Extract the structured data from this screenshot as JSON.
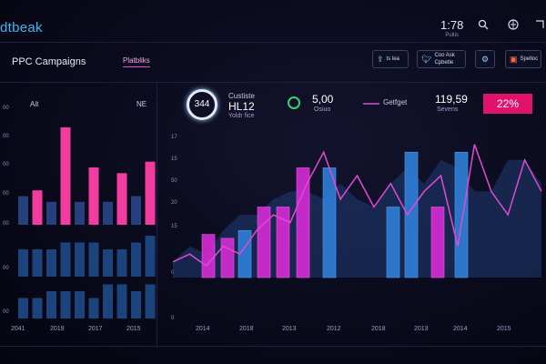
{
  "header": {
    "brand": "dtbeak",
    "stat_value": "1:78",
    "stat_label": "Pultis",
    "search_icon": "search-icon",
    "bell_icon": "bell-icon",
    "globe_icon": "globe-icon",
    "expand_icon": "expand-icon"
  },
  "subheader": {
    "title": "PPC Campaigns",
    "link": "Platbliks",
    "buttons": [
      {
        "icon": "share-icon",
        "label": "ts lea"
      },
      {
        "icon": "twitter-icon",
        "label": "Coo Ask Cpbetle"
      },
      {
        "icon": "gear-icon",
        "label": ""
      },
      {
        "icon": "store-icon",
        "label": "Spelloc"
      }
    ]
  },
  "left_panel": {
    "label_left": "Ait",
    "label_right": "NE",
    "x_labels": [
      "2041",
      "2019",
      "2017",
      "2015"
    ],
    "y_labels": [
      "00",
      "00",
      "00",
      "00",
      "00",
      "00",
      "00"
    ]
  },
  "kpis": {
    "ring_value": "344",
    "k1_title": "Custiste",
    "k1_value": "HL12",
    "k1_sub": "Yoldr fice",
    "k2_value": "5,00",
    "k2_sub": "Osiuo",
    "legend_label": "Getfget",
    "k3_value": "119,59",
    "k3_sub": "Sevens",
    "badge": "22%"
  },
  "main_chart": {
    "y_labels": [
      "17",
      "15",
      "50",
      "20",
      "15",
      "0",
      "0"
    ],
    "x_labels": [
      "2014",
      "2018",
      "2013",
      "2012",
      "2018",
      "2013",
      "2014",
      "2015"
    ]
  },
  "chart_data": [
    {
      "type": "bar",
      "series": [
        {
          "name": "top",
          "values": [
            5,
            6,
            4,
            17,
            4,
            10,
            4,
            9,
            5,
            11
          ],
          "colors": [
            "#2a4a8e",
            "#ff3fa8",
            "#2a4a8e",
            "#ff3fa8",
            "#2a4a8e",
            "#ff3fa8",
            "#2a4a8e",
            "#ff3fa8",
            "#2a4a8e",
            "#ff3fa8"
          ]
        },
        {
          "name": "middle",
          "values": [
            4,
            4,
            4,
            5,
            5,
            5,
            4,
            4,
            5,
            6
          ],
          "colors": [
            "#1f4f8f"
          ]
        },
        {
          "name": "bottom",
          "values": [
            3,
            3,
            4,
            4,
            4,
            3,
            5,
            5,
            4,
            5
          ],
          "colors": [
            "#1f4f8f"
          ]
        }
      ],
      "xlabels": [
        "2041",
        "2019",
        "2017",
        "2015"
      ]
    },
    {
      "type": "bar",
      "categories": [
        "2014",
        "2018",
        "2013",
        "2012",
        "2018",
        "2013",
        "2014",
        "2015"
      ],
      "series": [
        {
          "name": "magenta",
          "values": [
            5.5,
            5,
            7,
            9,
            9,
            14,
            0,
            0
          ],
          "color": "#d62bd6"
        },
        {
          "name": "blue",
          "values": [
            0,
            0,
            6,
            0,
            0,
            0,
            14,
            0
          ],
          "color": "#2e7ed8"
        }
      ],
      "bars": [
        {
          "v": 5.5,
          "c": "magenta"
        },
        {
          "v": 5,
          "c": "magenta"
        },
        {
          "v": 6,
          "c": "blue"
        },
        {
          "v": 9,
          "c": "magenta"
        },
        {
          "v": 9,
          "c": "magenta"
        },
        {
          "v": 14,
          "c": "magenta"
        },
        {
          "v": 14,
          "c": "blue"
        },
        {
          "v": 9,
          "c": "blue"
        },
        {
          "v": 16,
          "c": "blue"
        },
        {
          "v": 9,
          "c": "magenta"
        },
        {
          "v": 16,
          "c": "blue"
        }
      ],
      "line": [
        2,
        3,
        1.5,
        4,
        3,
        6,
        8,
        7,
        12,
        16,
        10,
        13,
        9,
        12,
        8,
        11,
        13,
        4,
        17,
        11,
        8,
        15,
        11
      ],
      "area": [
        2,
        4,
        3,
        6,
        8,
        8,
        10,
        11,
        11,
        10,
        12,
        10,
        9,
        12,
        14,
        12,
        15,
        14,
        11,
        11,
        15,
        15,
        12
      ],
      "ylim": [
        0,
        18
      ]
    }
  ]
}
